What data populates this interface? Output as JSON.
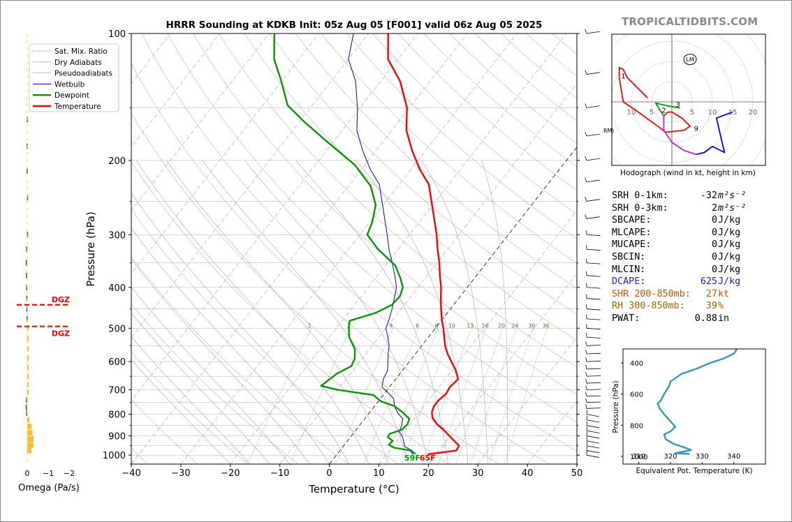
{
  "brand": "TROPICALTIDBITS.COM",
  "colors": {
    "temperature": "#ff0000",
    "dewpoint": "#009900",
    "wetbulb": "#0000dd",
    "dry_adiabat": "#d48a8a",
    "pseudoadiabat": "#8888cc",
    "mixing_ratio": "#2e8b2e",
    "isotherm": "#999999",
    "dcape": "#2020cc",
    "shear": "#cc5500",
    "rh": "#996600",
    "theta_e": "#3399bb",
    "hodo_0_1": "#ff0000",
    "hodo_1_3": "#009900",
    "hodo_3_6": "#cc22cc",
    "hodo_6_9": "#0000ff",
    "omega": "#ffbb33",
    "dgz": "#ff0000"
  },
  "chart_data": [
    {
      "type": "line",
      "title": "HRRR Sounding at KDKB Init: 05z Aug 05 [F001] valid 06z Aug 05 2025",
      "xlabel": "Temperature (°C)",
      "ylabel": "Pressure (hPa)",
      "xlim": [
        -40,
        50
      ],
      "ylim": [
        1050,
        100
      ],
      "y_scale": "log",
      "skew": "skew-T",
      "x_ticks": [
        "−40",
        "−30",
        "−20",
        "−10",
        "0",
        "10",
        "20",
        "30",
        "40",
        "50"
      ],
      "y_ticks": [
        "100",
        "200",
        "300",
        "400",
        "500",
        "600",
        "700",
        "800",
        "900",
        "1000"
      ],
      "legend": {
        "placement": "top-left",
        "entries": [
          "Sat. Mix. Ratio",
          "Dry Adiabats",
          "Pseudoadiabats",
          "Wetbulb",
          "Dewpoint",
          "Temperature"
        ]
      },
      "mixing_ratio_labels": [
        "1",
        "2",
        "4",
        "6",
        "8",
        "10",
        "13",
        "16",
        "20",
        "24",
        "30",
        "36"
      ],
      "surface_labels": {
        "dewpoint": "59F",
        "temperature": "65F"
      },
      "series": [
        {
          "name": "Temperature",
          "points": [
            [
              18.3,
              995
            ],
            [
              23.5,
              975
            ],
            [
              23.3,
              950
            ],
            [
              20.5,
              910
            ],
            [
              18.0,
              875
            ],
            [
              15.5,
              845
            ],
            [
              13.5,
              815
            ],
            [
              12.5,
              790
            ],
            [
              12.0,
              765
            ],
            [
              12.0,
              740
            ],
            [
              12.5,
              715
            ],
            [
              12.2,
              690
            ],
            [
              12.6,
              660
            ],
            [
              10.8,
              630
            ],
            [
              8.5,
              600
            ],
            [
              6.5,
              575
            ],
            [
              4.7,
              550
            ],
            [
              3.2,
              525
            ],
            [
              1.6,
              500
            ],
            [
              -0.2,
              475
            ],
            [
              -1.9,
              450
            ],
            [
              -3.6,
              425
            ],
            [
              -5.3,
              400
            ],
            [
              -7.4,
              375
            ],
            [
              -9.5,
              350
            ],
            [
              -12.0,
              325
            ],
            [
              -14.5,
              300
            ],
            [
              -17.5,
              275
            ],
            [
              -20.8,
              250
            ],
            [
              -24.0,
              228
            ],
            [
              -28.2,
              210
            ],
            [
              -32.6,
              190
            ],
            [
              -37.0,
              170
            ],
            [
              -40.5,
              150
            ],
            [
              -46.0,
              130
            ],
            [
              -52.0,
              115
            ],
            [
              -56.0,
              100
            ]
          ]
        },
        {
          "name": "Dewpoint",
          "points": [
            [
              15.5,
              995
            ],
            [
              14.2,
              975
            ],
            [
              10.5,
              960
            ],
            [
              9.0,
              945
            ],
            [
              9.1,
              925
            ],
            [
              7.5,
              905
            ],
            [
              7.4,
              890
            ],
            [
              9.2,
              870
            ],
            [
              9.5,
              845
            ],
            [
              9.0,
              820
            ],
            [
              6.5,
              790
            ],
            [
              4.0,
              765
            ],
            [
              0.5,
              745
            ],
            [
              -2.0,
              720
            ],
            [
              -10.0,
              700
            ],
            [
              -14.0,
              685
            ],
            [
              -12.7,
              640
            ],
            [
              -11.0,
              615
            ],
            [
              -11.5,
              590
            ],
            [
              -13.0,
              560
            ],
            [
              -16.0,
              525
            ],
            [
              -17.5,
              500
            ],
            [
              -18.5,
              480
            ],
            [
              -14.5,
              460
            ],
            [
              -12.5,
              440
            ],
            [
              -12.2,
              420
            ],
            [
              -13.0,
              400
            ],
            [
              -15.0,
              380
            ],
            [
              -18.0,
              355
            ],
            [
              -24.0,
              325
            ],
            [
              -28.5,
              300
            ],
            [
              -29.5,
              280
            ],
            [
              -31.5,
              255
            ],
            [
              -35.5,
              230
            ],
            [
              -42.0,
              205
            ],
            [
              -51.5,
              180
            ],
            [
              -59.0,
              162
            ],
            [
              -65.0,
              148
            ],
            [
              -70.0,
              130
            ],
            [
              -75.0,
              115
            ],
            [
              -79.0,
              100
            ]
          ]
        },
        {
          "name": "Wetbulb",
          "points": [
            [
              16.0,
              995
            ],
            [
              14.5,
              975
            ],
            [
              12.5,
              955
            ],
            [
              11.5,
              930
            ],
            [
              10.5,
              905
            ],
            [
              9.0,
              880
            ],
            [
              8.5,
              850
            ],
            [
              7.7,
              820
            ],
            [
              5.8,
              795
            ],
            [
              4.0,
              765
            ],
            [
              2.7,
              735
            ],
            [
              0.5,
              710
            ],
            [
              -1.5,
              690
            ],
            [
              -2.5,
              660
            ],
            [
              -3.0,
              630
            ],
            [
              -4.3,
              600
            ],
            [
              -5.5,
              575
            ],
            [
              -6.6,
              550
            ],
            [
              -8.2,
              525
            ],
            [
              -10.0,
              500
            ],
            [
              -10.8,
              475
            ],
            [
              -11.8,
              450
            ],
            [
              -13.0,
              425
            ],
            [
              -14.3,
              400
            ],
            [
              -16.5,
              375
            ],
            [
              -19.0,
              350
            ],
            [
              -21.8,
              325
            ],
            [
              -24.5,
              300
            ],
            [
              -27.5,
              275
            ],
            [
              -30.8,
              250
            ],
            [
              -34.0,
              228
            ],
            [
              -38.2,
              210
            ],
            [
              -42.6,
              190
            ],
            [
              -47.0,
              170
            ],
            [
              -50.5,
              150
            ],
            [
              -55.0,
              130
            ],
            [
              -60.0,
              115
            ],
            [
              -63.0,
              100
            ]
          ]
        }
      ]
    },
    {
      "type": "line",
      "title": "Hodograph (wind in kt, height in km)",
      "x_ticks": [
        "10",
        "5",
        "5",
        "10",
        "15",
        "20"
      ],
      "markers": [
        "LM",
        "RM"
      ],
      "height_labels": [
        "1",
        "2",
        "3",
        "9"
      ],
      "series": [
        {
          "name": "0-1 km",
          "points": [
            [
              -6,
              1
            ],
            [
              -11,
              6
            ],
            [
              -12,
              8
            ],
            [
              -13,
              8.5
            ],
            [
              -13,
              6
            ],
            [
              -12,
              0
            ],
            [
              -9,
              -2
            ],
            [
              -3.5,
              -6
            ],
            [
              -1.5,
              -7.5
            ],
            [
              3,
              -7
            ],
            [
              4.5,
              -6
            ],
            [
              2.5,
              -4
            ],
            [
              0,
              -2.5
            ],
            [
              -1,
              -2.5
            ],
            [
              -2,
              -3.5
            ]
          ]
        },
        {
          "name": "1-3 km",
          "points": [
            [
              -2,
              -3.5
            ],
            [
              -4,
              -0.3
            ],
            [
              -1,
              -1
            ],
            [
              2,
              -1.5
            ]
          ]
        },
        {
          "name": "3-6 km",
          "points": [
            [
              -2,
              -3.5
            ],
            [
              -2,
              -7
            ],
            [
              0,
              -10
            ],
            [
              3,
              -12
            ],
            [
              6,
              -13
            ]
          ]
        },
        {
          "name": "6-9 km",
          "points": [
            [
              6,
              -13
            ],
            [
              8,
              -12.5
            ],
            [
              10,
              -11
            ],
            [
              13,
              -12.5
            ],
            [
              11,
              -4
            ],
            [
              15,
              -2.5
            ]
          ]
        }
      ]
    },
    {
      "type": "bar",
      "title": "",
      "xlabel": "Omega (Pa/s)",
      "x_ticks": [
        "0",
        "−1",
        "−2"
      ],
      "dgz_label": "DGZ",
      "dgz_levels": [
        440,
        495
      ],
      "bars": [
        {
          "p": 160,
          "omega": 0.03
        },
        {
          "p": 185,
          "omega": 0.04
        },
        {
          "p": 212,
          "omega": 0.04
        },
        {
          "p": 245,
          "omega": 0.02
        },
        {
          "p": 300,
          "omega": 0.02
        },
        {
          "p": 325,
          "omega": 0.06
        },
        {
          "p": 350,
          "omega": 0.08
        },
        {
          "p": 375,
          "omega": 0.07
        },
        {
          "p": 400,
          "omega": 0.06
        },
        {
          "p": 425,
          "omega": 0.05
        },
        {
          "p": 450,
          "omega": 0.05
        },
        {
          "p": 475,
          "omega": 0.04
        },
        {
          "p": 500,
          "omega": -0.02
        },
        {
          "p": 530,
          "omega": -0.03
        },
        {
          "p": 560,
          "omega": -0.04
        },
        {
          "p": 590,
          "omega": -0.04
        },
        {
          "p": 620,
          "omega": -0.05
        },
        {
          "p": 650,
          "omega": -0.05
        },
        {
          "p": 680,
          "omega": -0.05
        },
        {
          "p": 710,
          "omega": -0.05
        },
        {
          "p": 740,
          "omega": 0.06
        },
        {
          "p": 770,
          "omega": 0.08
        },
        {
          "p": 795,
          "omega": 0.06
        },
        {
          "p": 825,
          "omega": -0.1
        },
        {
          "p": 855,
          "omega": -0.2
        },
        {
          "p": 885,
          "omega": -0.25
        },
        {
          "p": 915,
          "omega": -0.3
        },
        {
          "p": 945,
          "omega": -0.3
        },
        {
          "p": 975,
          "omega": -0.2
        }
      ]
    },
    {
      "type": "line",
      "title": "",
      "xlabel": "Equivalent Pot. Temperature (K)",
      "ylabel": "Pressure (hPa)",
      "xlim": [
        305,
        350
      ],
      "ylim": [
        1050,
        310
      ],
      "x_ticks": [
        "310",
        "320",
        "330",
        "340"
      ],
      "y_ticks": [
        "400",
        "600",
        "800",
        "1000"
      ],
      "series": [
        {
          "name": "theta-e",
          "points": [
            [
              341,
              310
            ],
            [
              340,
              340
            ],
            [
              337,
              370
            ],
            [
              332.5,
              400
            ],
            [
              328.5,
              435
            ],
            [
              323.5,
              470
            ],
            [
              320,
              520
            ],
            [
              319.5,
              550
            ],
            [
              318,
              600
            ],
            [
              317,
              640
            ],
            [
              316,
              660
            ],
            [
              316.5,
              690
            ],
            [
              318,
              730
            ],
            [
              320,
              775
            ],
            [
              321.5,
              810
            ],
            [
              320,
              840
            ],
            [
              318,
              860
            ],
            [
              318.5,
              890
            ],
            [
              321,
              920
            ],
            [
              324,
              940
            ],
            [
              326.5,
              960
            ],
            [
              321.5,
              980
            ],
            [
              326,
              985
            ]
          ]
        }
      ]
    }
  ],
  "params": [
    {
      "label": "SRH 0-1km:",
      "value": "-32",
      "unit": "m²s⁻²",
      "color": ""
    },
    {
      "label": "SRH 0-3km:",
      "value": "2",
      "unit": "m²s⁻²",
      "color": ""
    },
    {
      "label": "SBCAPE:",
      "value": "0",
      "unit": "J/kg",
      "color": ""
    },
    {
      "label": "MLCAPE:",
      "value": "0",
      "unit": "J/kg",
      "color": ""
    },
    {
      "label": "MUCAPE:",
      "value": "0",
      "unit": "J/kg",
      "color": ""
    },
    {
      "label": "SBCIN:",
      "value": "0",
      "unit": "J/kg",
      "color": ""
    },
    {
      "label": "MLCIN:",
      "value": "0",
      "unit": "J/kg",
      "color": ""
    },
    {
      "label": "DCAPE:",
      "value": "625",
      "unit": "J/kg",
      "color": "#2020cc"
    },
    {
      "label": "SHR 200-850mb:",
      "value": "27",
      "unit": "kt",
      "color": "#cc5500"
    },
    {
      "label": "RH 300-850mb:",
      "value": "39",
      "unit": "%",
      "color": "#996600"
    },
    {
      "label": "PWAT:",
      "value": "0.88",
      "unit": "in",
      "color": ""
    }
  ]
}
